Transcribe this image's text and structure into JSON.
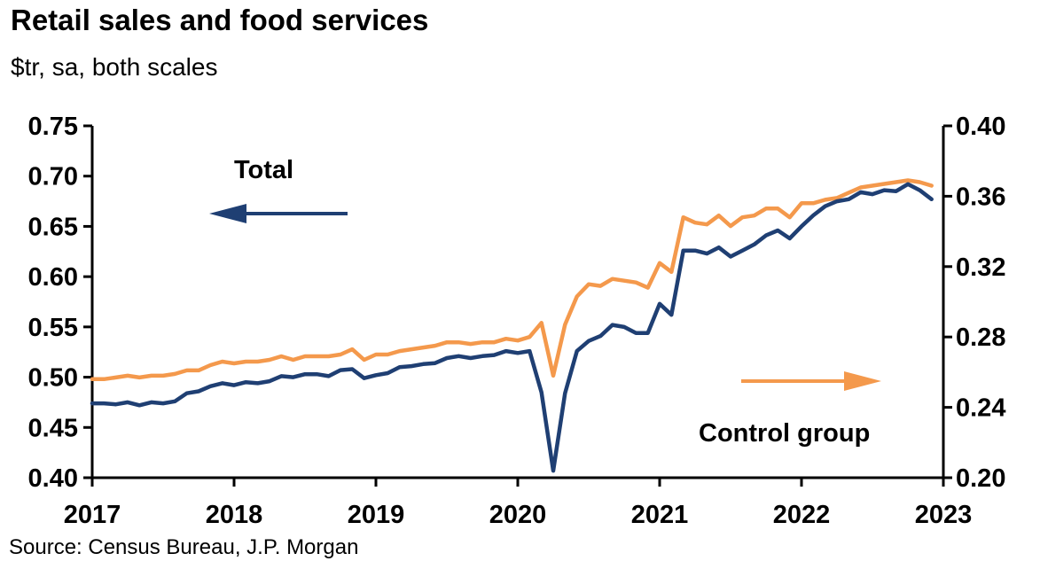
{
  "chart_data": {
    "type": "line",
    "title": "Retail sales and food services",
    "subtitle": "$tr, sa, both scales",
    "source": "Source: Census Bureau, J.P. Morgan",
    "x_ticks": [
      "2017",
      "2018",
      "2019",
      "2020",
      "2021",
      "2022",
      "2023"
    ],
    "left_axis": {
      "ylim": [
        0.4,
        0.75
      ],
      "ticks": [
        "0.40",
        "0.45",
        "0.50",
        "0.55",
        "0.60",
        "0.65",
        "0.70",
        "0.75"
      ]
    },
    "right_axis": {
      "ylim": [
        0.2,
        0.4
      ],
      "ticks": [
        "0.20",
        "0.24",
        "0.28",
        "0.32",
        "0.36",
        "0.40"
      ]
    },
    "annotations": {
      "total": "Total",
      "control": "Control group"
    },
    "colors": {
      "total": "#1f3f73",
      "control": "#f4994c"
    },
    "x_start_year": 2017,
    "series": [
      {
        "name": "Total",
        "axis": "left",
        "values": [
          0.474,
          0.474,
          0.473,
          0.475,
          0.472,
          0.475,
          0.474,
          0.476,
          0.484,
          0.486,
          0.491,
          0.494,
          0.492,
          0.495,
          0.494,
          0.496,
          0.501,
          0.5,
          0.503,
          0.503,
          0.501,
          0.507,
          0.508,
          0.499,
          0.502,
          0.504,
          0.51,
          0.511,
          0.513,
          0.514,
          0.519,
          0.521,
          0.519,
          0.521,
          0.522,
          0.526,
          0.524,
          0.526,
          0.485,
          0.407,
          0.484,
          0.526,
          0.536,
          0.541,
          0.552,
          0.55,
          0.544,
          0.544,
          0.573,
          0.562,
          0.626,
          0.626,
          0.623,
          0.629,
          0.62,
          0.626,
          0.632,
          0.641,
          0.646,
          0.638,
          0.65,
          0.661,
          0.67,
          0.675,
          0.677,
          0.684,
          0.682,
          0.686,
          0.685,
          0.692,
          0.686,
          0.677
        ]
      },
      {
        "name": "Control group",
        "axis": "right",
        "values": [
          0.256,
          0.256,
          0.257,
          0.258,
          0.257,
          0.258,
          0.258,
          0.259,
          0.261,
          0.261,
          0.264,
          0.266,
          0.265,
          0.266,
          0.266,
          0.267,
          0.269,
          0.267,
          0.269,
          0.269,
          0.269,
          0.27,
          0.273,
          0.267,
          0.27,
          0.27,
          0.272,
          0.273,
          0.274,
          0.275,
          0.277,
          0.277,
          0.276,
          0.277,
          0.277,
          0.279,
          0.278,
          0.28,
          0.288,
          0.258,
          0.287,
          0.303,
          0.31,
          0.309,
          0.313,
          0.312,
          0.311,
          0.308,
          0.322,
          0.317,
          0.348,
          0.345,
          0.344,
          0.349,
          0.343,
          0.348,
          0.349,
          0.353,
          0.353,
          0.348,
          0.356,
          0.356,
          0.358,
          0.359,
          0.362,
          0.365,
          0.366,
          0.367,
          0.368,
          0.369,
          0.368,
          0.366
        ]
      }
    ]
  }
}
